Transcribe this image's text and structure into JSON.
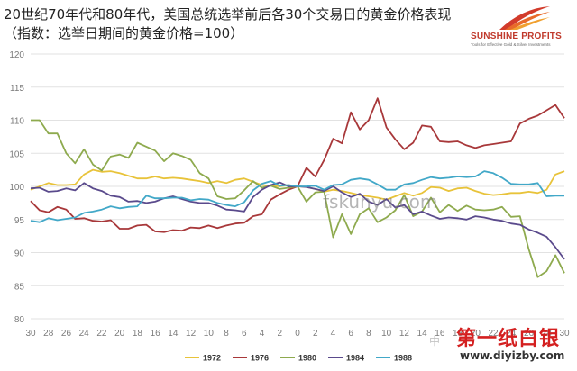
{
  "title": "20世纪70年代和80年代，美国总统选举前后各30个交易日的黄金价格表现",
  "subtitle": "（指数：选举日期间的黄金价格=100）",
  "logo": {
    "name": "SUNSHINE PROFITS",
    "tagline": "Tools for Effective Gold & Silver Investments"
  },
  "watermarks": {
    "center": "fskunyu.com",
    "brand": "第一纸白银",
    "url": "www.diyizby.com",
    "cn": "中"
  },
  "colors": {
    "1972": "#e8c33a",
    "1976": "#a8383a",
    "1980": "#8eaa4e",
    "1984": "#5a4a8c",
    "1988": "#42a8c8",
    "grid": "#e2e2e2",
    "axis_text": "#7a7a7a"
  },
  "chart_data": {
    "type": "line",
    "title": "",
    "xlabel": "",
    "ylabel": "",
    "ylim": [
      80,
      120
    ],
    "yticks": [
      80,
      85,
      90,
      95,
      100,
      105,
      110,
      115,
      120
    ],
    "xticks": [
      "30",
      "28",
      "26",
      "24",
      "22",
      "20",
      "18",
      "16",
      "14",
      "12",
      "10",
      "8",
      "6",
      "4",
      "2",
      "0",
      "2",
      "4",
      "6",
      "8",
      "10",
      "12",
      "14",
      "16",
      "18",
      "20",
      "22",
      "24",
      "26",
      "28",
      "30"
    ],
    "x": [
      -30,
      -29,
      -28,
      -27,
      -26,
      -25,
      -24,
      -23,
      -22,
      -21,
      -20,
      -19,
      -18,
      -17,
      -16,
      -15,
      -14,
      -13,
      -12,
      -11,
      -10,
      -9,
      -8,
      -7,
      -6,
      -5,
      -4,
      -3,
      -2,
      -1,
      0,
      1,
      2,
      3,
      4,
      5,
      6,
      7,
      8,
      9,
      10,
      11,
      12,
      13,
      14,
      15,
      16,
      17,
      18,
      19,
      20,
      21,
      22,
      23,
      24,
      25,
      26,
      27,
      28,
      29,
      30
    ],
    "grid": true,
    "legend_position": "bottom",
    "series": [
      {
        "name": "1972",
        "values": [
          99.5,
          100,
          100.5,
          100.2,
          100.2,
          100.3,
          101.8,
          102.5,
          102.2,
          102.3,
          102,
          101.6,
          101.2,
          101.2,
          101.5,
          101.2,
          101.3,
          101.2,
          101.0,
          100.8,
          100.5,
          100.8,
          100.5,
          101,
          101.2,
          100.7,
          100.2,
          100.1,
          100.0,
          100.2,
          100.0,
          99.9,
          99.6,
          99.2,
          99.5,
          99.3,
          99.0,
          98.7,
          98.5,
          98.3,
          98.0,
          98.5,
          99.0,
          98.6,
          99.0,
          99.9,
          99.8,
          99.3,
          99.7,
          99.8,
          99.3,
          98.9,
          98.7,
          98.8,
          99.0,
          99.0,
          99.2,
          99.0,
          99.5,
          101.8,
          102.3
        ]
      },
      {
        "name": "1976",
        "values": [
          97.8,
          96.4,
          96.1,
          96.9,
          96.5,
          95.1,
          95.2,
          94.8,
          94.7,
          94.9,
          93.6,
          93.6,
          94.1,
          94.2,
          93.2,
          93.1,
          93.4,
          93.3,
          93.8,
          93.7,
          94.1,
          93.7,
          94.1,
          94.4,
          94.5,
          95.5,
          95.8,
          98.0,
          98.8,
          99.5,
          100.0,
          102.8,
          101.5,
          104.0,
          107.2,
          106.5,
          111.2,
          108.6,
          110.0,
          113.3,
          108.9,
          107.1,
          105.6,
          106.6,
          109.2,
          109.0,
          106.8,
          106.7,
          106.8,
          106.2,
          105.8,
          106.2,
          106.4,
          106.6,
          106.8,
          109.5,
          110.2,
          110.7,
          111.5,
          112.3,
          110.3
        ]
      },
      {
        "name": "1980",
        "values": [
          110,
          110,
          108,
          108,
          105,
          103.5,
          105.6,
          103.3,
          102.4,
          104.5,
          104.8,
          104.3,
          106.6,
          106,
          105.4,
          103.8,
          105,
          104.6,
          104,
          102,
          101.2,
          98.5,
          98.1,
          98.2,
          99.4,
          100.8,
          99.8,
          100.1,
          99.6,
          99.8,
          100.0,
          97.7,
          99.1,
          99.2,
          92.3,
          95.8,
          92.8,
          95.8,
          96.7,
          94.6,
          95.3,
          96.4,
          98.7,
          95.5,
          96.2,
          98.3,
          96.1,
          97.2,
          96.3,
          97.1,
          96.5,
          96.4,
          96.5,
          96.9,
          95.4,
          95.5,
          90.5,
          86.3,
          87.2,
          89.6,
          86.9
        ]
      },
      {
        "name": "1984",
        "values": [
          99.7,
          99.8,
          99.2,
          99.3,
          99.7,
          99.4,
          100.5,
          99.7,
          99.3,
          98.6,
          98.4,
          97.7,
          97.8,
          97.5,
          97.7,
          98.2,
          98.5,
          98.1,
          97.7,
          97.5,
          97.5,
          97.1,
          96.5,
          96.4,
          96.2,
          98.4,
          99.5,
          100.2,
          100.6,
          100.0,
          100.0,
          99.9,
          99.6,
          99.3,
          100.0,
          99.1,
          98.4,
          98.9,
          97.7,
          97.2,
          98.1,
          96.8,
          97.2,
          95.8,
          96.2,
          95.6,
          95.1,
          95.3,
          95.2,
          95.0,
          95.5,
          95.3,
          95.0,
          94.8,
          94.4,
          94.2,
          93.5,
          93.0,
          92.4,
          90.8,
          89.0
        ]
      },
      {
        "name": "1988",
        "values": [
          94.8,
          94.6,
          95.2,
          94.9,
          95.1,
          95.3,
          96.0,
          96.2,
          96.5,
          97.0,
          96.7,
          96.9,
          97.0,
          98.6,
          98.2,
          98.2,
          98.3,
          98.3,
          97.9,
          98.1,
          98.0,
          97.5,
          97.2,
          97.0,
          97.6,
          99.4,
          100.4,
          100.8,
          100.1,
          100.2,
          100.0,
          100.0,
          100.1,
          99.5,
          100.2,
          100.3,
          101.0,
          101.2,
          101.0,
          100.3,
          99.5,
          99.5,
          100.3,
          100.5,
          101.0,
          101.4,
          101.2,
          101.3,
          101.5,
          101.4,
          101.5,
          102.3,
          102.0,
          101.3,
          100.4,
          100.3,
          100.3,
          100.5,
          98.5,
          98.6,
          98.6
        ]
      }
    ]
  }
}
